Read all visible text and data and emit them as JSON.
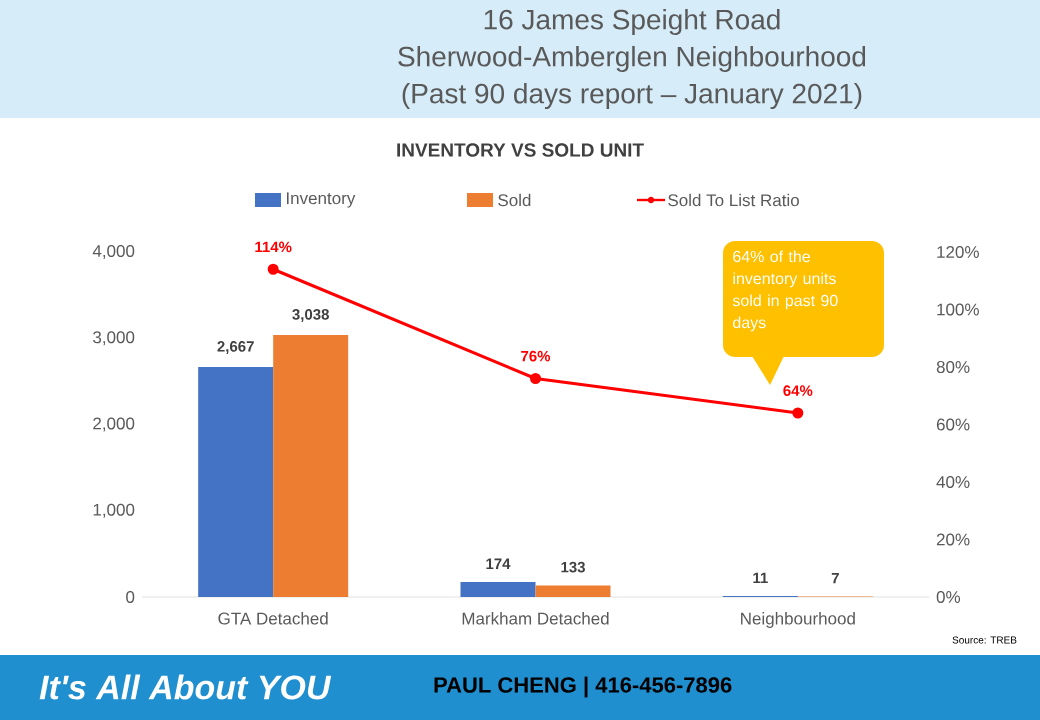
{
  "chart_data": {
    "type": "bar",
    "title": "INVENTORY VS SOLD UNIT",
    "categories": [
      "GTA Detached",
      "Markham Detached",
      "Neighbourhood"
    ],
    "series": [
      {
        "name": "Inventory",
        "color": "#4472c4",
        "values": [
          2667,
          174,
          11
        ],
        "value_labels": [
          "2,667",
          "174",
          "11"
        ]
      },
      {
        "name": "Sold",
        "color": "#ed7d31",
        "values": [
          3038,
          133,
          7
        ],
        "value_labels": [
          "3,038",
          "133",
          "7"
        ]
      },
      {
        "name": "Sold To List Ratio",
        "type": "line",
        "axis": "y2",
        "color": "#ff0000",
        "marker": "circle",
        "line_style": "solid",
        "values": [
          114,
          76,
          64
        ],
        "value_labels": [
          "114%",
          "76%",
          "64%"
        ]
      }
    ],
    "ylim": [
      0,
      4000
    ],
    "yticks": [
      0,
      {
        "value": 1000,
        "label": "1,000"
      },
      {
        "value": 2000,
        "label": "2,000"
      },
      {
        "value": 3000,
        "label": "3,000"
      },
      {
        "value": 4000,
        "label": "4,000"
      }
    ],
    "y2lim": [
      0,
      120
    ],
    "y2ticks": [
      {
        "value": 0,
        "label": "0%"
      },
      {
        "value": 20,
        "label": "20%"
      },
      {
        "value": 40,
        "label": "40%"
      },
      {
        "value": 60,
        "label": "60%"
      },
      {
        "value": 80,
        "label": "80%"
      },
      {
        "value": 100,
        "label": "100%"
      },
      {
        "value": 120,
        "label": "120%"
      }
    ],
    "legend": "top",
    "grid": false,
    "annotations": [
      "16 James Speight Road",
      "Sherwood-Amberglen Neighbourhood",
      "(Past 90 days report – January 2021)",
      "64% of the inventory units sold in past 90 days",
      "Source: TREB",
      "It's All About YOU",
      "PAUL CHENG | 416-456-7896"
    ]
  }
}
